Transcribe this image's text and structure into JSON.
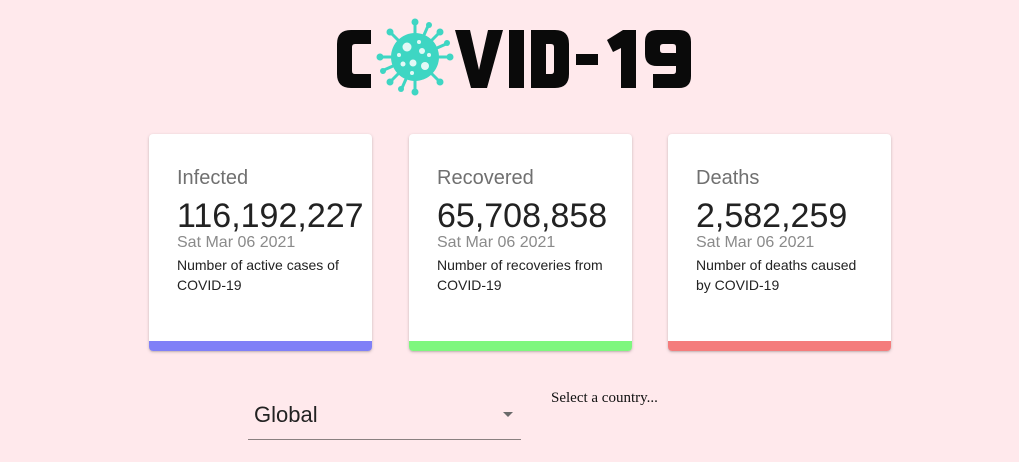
{
  "header": {
    "logo_text": "COVID-19",
    "logo_icon": "virus-icon",
    "colors": {
      "text": "#0a0a0a",
      "virus": "#3ed6c3"
    }
  },
  "cards": [
    {
      "title": "Infected",
      "value": "116,192,227",
      "date": "Sat Mar 06 2021",
      "description": "Number of active cases of COVID-19",
      "accent": "#8080f7"
    },
    {
      "title": "Recovered",
      "value": "65,708,858",
      "date": "Sat Mar 06 2021",
      "description": "Number of recoveries from COVID-19",
      "accent": "#7ef77e"
    },
    {
      "title": "Deaths",
      "value": "2,582,259",
      "date": "Sat Mar 06 2021",
      "description": "Number of deaths caused by COVID-19",
      "accent": "#f47c7c"
    }
  ],
  "country_selector": {
    "selected": "Global",
    "hint": "Select a country..."
  }
}
